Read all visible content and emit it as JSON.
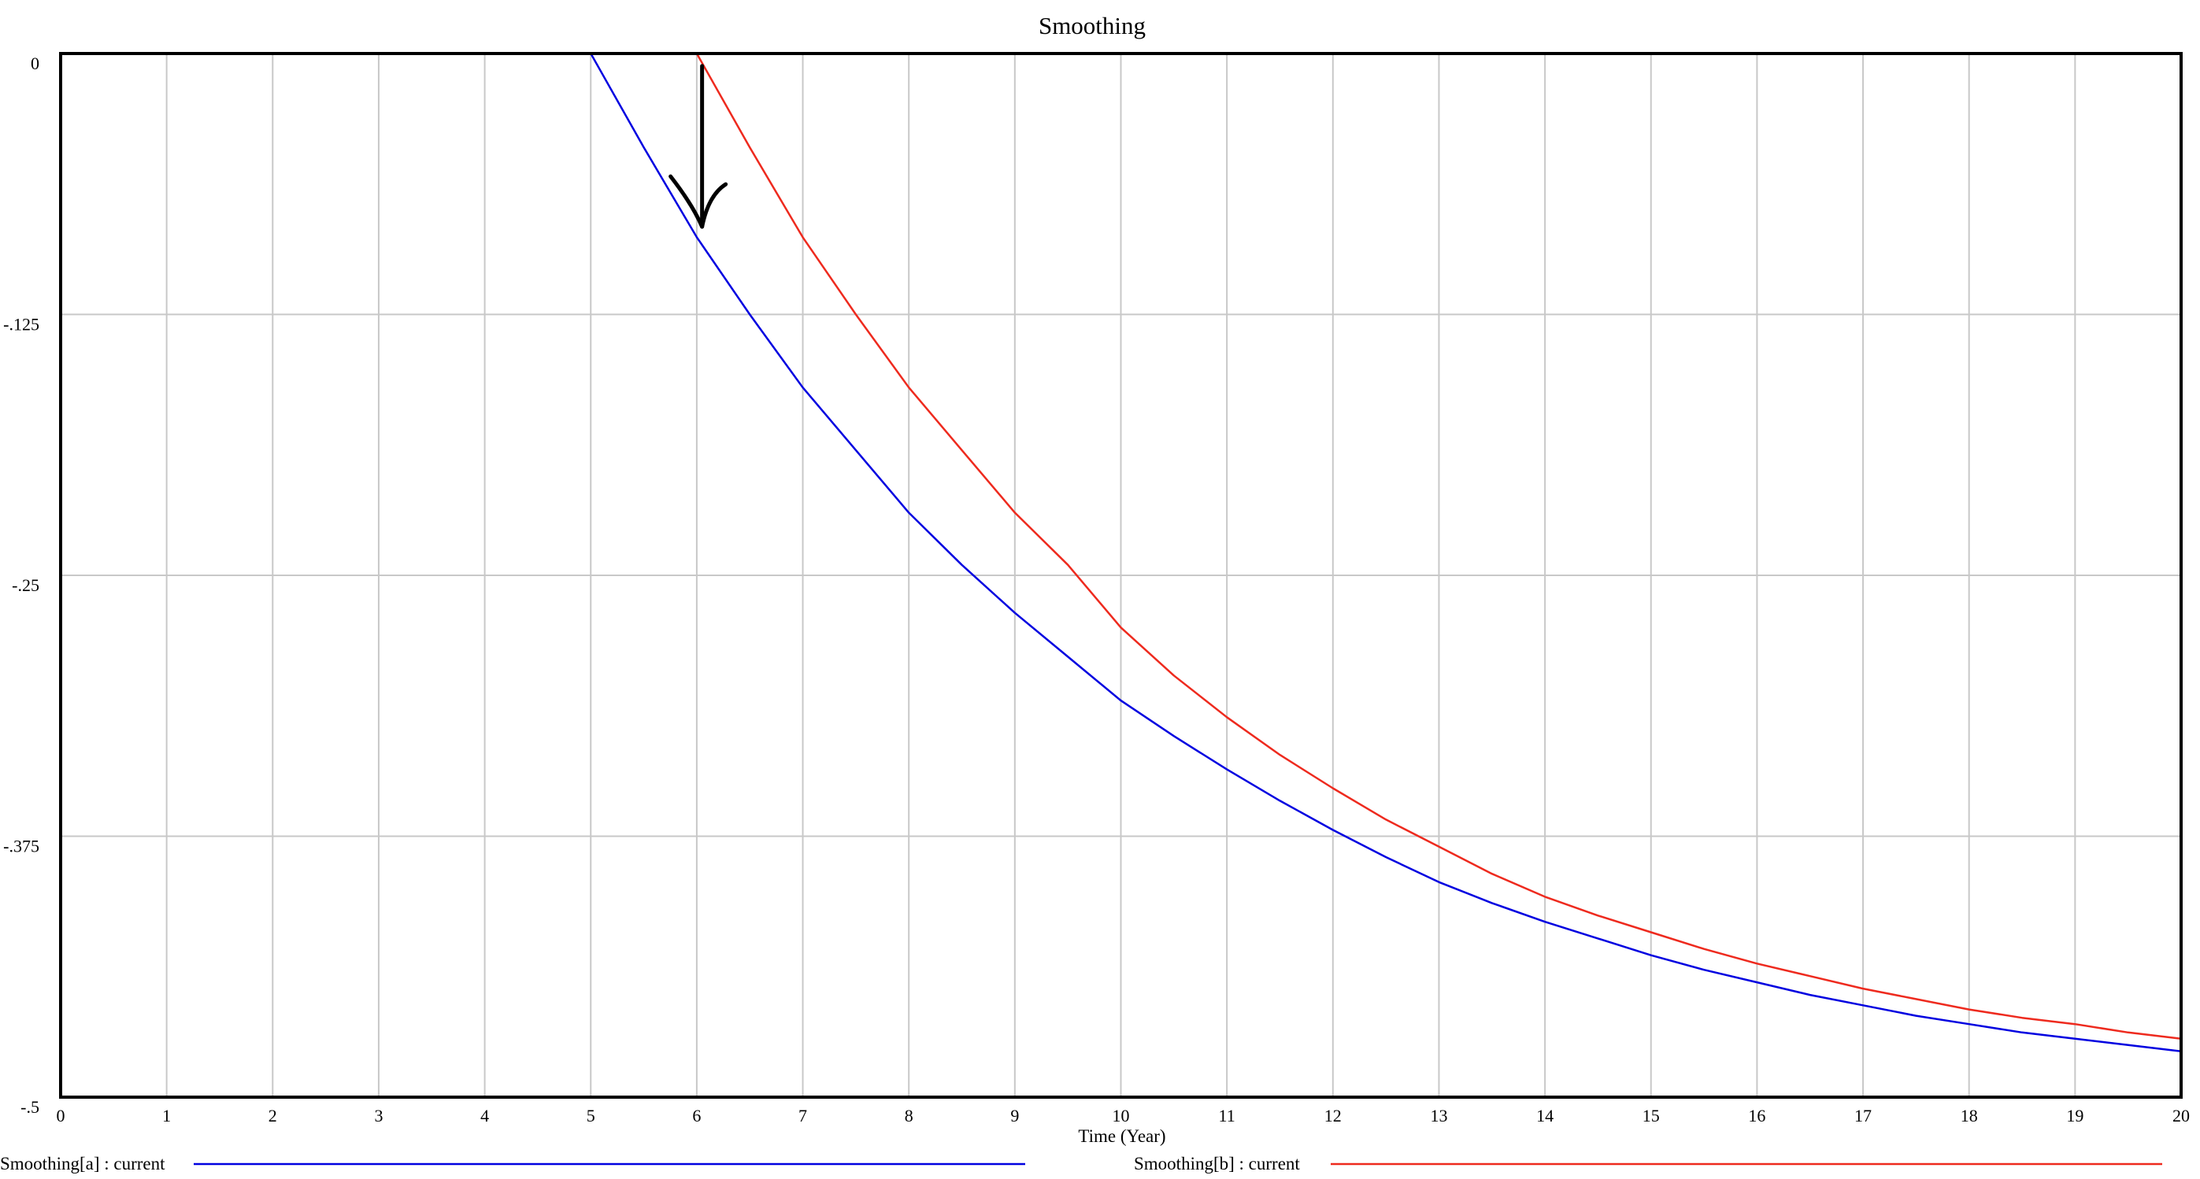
{
  "chart_data": {
    "type": "line",
    "title": "Smoothing",
    "xlabel": "Time (Year)",
    "ylabel": "",
    "xlim": [
      0,
      20
    ],
    "ylim": [
      -0.5,
      0
    ],
    "x_ticks": [
      "0",
      "1",
      "2",
      "3",
      "4",
      "5",
      "6",
      "7",
      "8",
      "9",
      "10",
      "11",
      "12",
      "13",
      "14",
      "15",
      "16",
      "17",
      "18",
      "19",
      "20"
    ],
    "y_ticks": [
      {
        "value": 0,
        "label": "0"
      },
      {
        "value": -0.125,
        "label": "-.125"
      },
      {
        "value": -0.25,
        "label": "-.25"
      },
      {
        "value": -0.375,
        "label": "-.375"
      },
      {
        "value": -0.5,
        "label": "-.5"
      }
    ],
    "grid": true,
    "legend_position": "bottom",
    "series": [
      {
        "name": "Smoothing[a] : current",
        "color": "#0000e0",
        "x": [
          0,
          1,
          2,
          3,
          4,
          5,
          5.5,
          6,
          6.5,
          7,
          7.5,
          8,
          8.5,
          9,
          9.5,
          10,
          10.5,
          11,
          11.5,
          12,
          12.5,
          13,
          13.5,
          14,
          14.5,
          15,
          15.5,
          16,
          16.5,
          17,
          17.5,
          18,
          18.5,
          19,
          19.5,
          20
        ],
        "y": [
          0,
          0,
          0,
          0,
          0,
          0,
          -0.045,
          -0.088,
          -0.125,
          -0.16,
          -0.19,
          -0.22,
          -0.245,
          -0.268,
          -0.289,
          -0.31,
          -0.327,
          -0.343,
          -0.358,
          -0.372,
          -0.385,
          -0.397,
          -0.407,
          -0.416,
          -0.424,
          -0.432,
          -0.439,
          -0.445,
          -0.451,
          -0.456,
          -0.461,
          -0.465,
          -0.469,
          -0.472,
          -0.475,
          -0.478
        ]
      },
      {
        "name": "Smoothing[b] : current",
        "color": "#ee2a1e",
        "x": [
          0,
          1,
          2,
          3,
          4,
          5,
          6,
          6.5,
          7,
          7.5,
          8,
          8.5,
          9,
          9.5,
          10,
          10.5,
          11,
          11.5,
          12,
          12.5,
          13,
          13.5,
          14,
          14.5,
          15,
          15.5,
          16,
          16.5,
          17,
          17.5,
          18,
          18.5,
          19,
          19.5,
          20
        ],
        "y": [
          0,
          0,
          0,
          0,
          0,
          0,
          0,
          -0.045,
          -0.088,
          -0.125,
          -0.16,
          -0.19,
          -0.22,
          -0.245,
          -0.275,
          -0.298,
          -0.318,
          -0.336,
          -0.352,
          -0.367,
          -0.38,
          -0.393,
          -0.404,
          -0.413,
          -0.421,
          -0.429,
          -0.436,
          -0.442,
          -0.448,
          -0.453,
          -0.458,
          -0.462,
          -0.465,
          -0.469,
          -0.472
        ]
      }
    ],
    "annotation": {
      "type": "arrow",
      "direction": "down",
      "color": "#000000",
      "x": 6.05,
      "y_from": -0.006,
      "y_to": -0.083
    }
  }
}
